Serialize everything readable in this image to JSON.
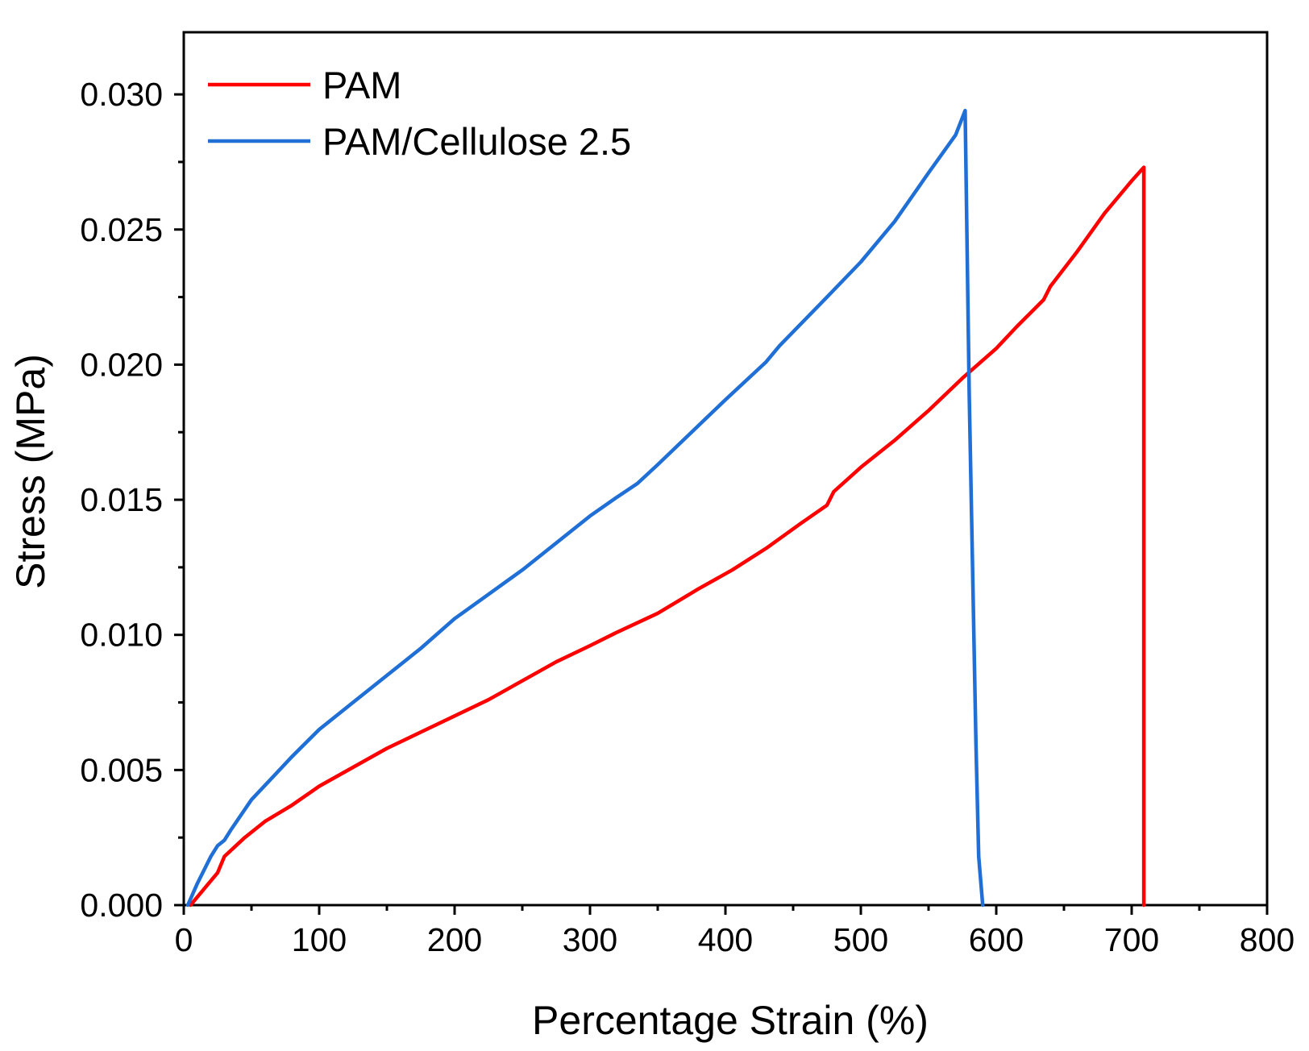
{
  "chart_data": {
    "type": "line",
    "title": "",
    "xlabel": "Percentage Strain (%)",
    "ylabel": "Stress (MPa)",
    "xlim": [
      0,
      800
    ],
    "ylim": [
      0,
      0.0323
    ],
    "x_ticks": [
      0,
      100,
      200,
      300,
      400,
      500,
      600,
      700,
      800
    ],
    "x_tick_labels": [
      "0",
      "100",
      "200",
      "300",
      "400",
      "500",
      "600",
      "700",
      "800"
    ],
    "y_ticks": [
      0,
      0.005,
      0.01,
      0.015,
      0.02,
      0.025,
      0.03
    ],
    "y_tick_labels": [
      "0.000",
      "0.005",
      "0.010",
      "0.015",
      "0.020",
      "0.025",
      "0.030"
    ],
    "grid": false,
    "legend_position": "top-left",
    "series": [
      {
        "name": "PAM",
        "color": "#ff0000",
        "x": [
          5,
          10,
          25,
          30,
          45,
          60,
          80,
          100,
          125,
          150,
          175,
          200,
          225,
          250,
          275,
          300,
          320,
          350,
          370,
          380,
          405,
          430,
          455,
          475,
          480,
          500,
          525,
          550,
          575,
          600,
          615,
          635,
          640,
          660,
          680,
          700,
          709,
          709
        ],
        "y": [
          0,
          0.0003,
          0.0012,
          0.0018,
          0.0025,
          0.0031,
          0.0037,
          0.0044,
          0.0051,
          0.0058,
          0.0064,
          0.007,
          0.0076,
          0.0083,
          0.009,
          0.0096,
          0.0101,
          0.0108,
          0.0114,
          0.0117,
          0.0124,
          0.0132,
          0.0141,
          0.0148,
          0.0153,
          0.0162,
          0.0172,
          0.0183,
          0.0195,
          0.0206,
          0.0214,
          0.0224,
          0.0229,
          0.0242,
          0.0256,
          0.0268,
          0.0273,
          0
        ]
      },
      {
        "name": "PAM/Cellulose 2.5",
        "color": "#1f6fd6",
        "x": [
          3,
          10,
          20,
          25,
          30,
          35,
          50,
          65,
          80,
          100,
          125,
          150,
          175,
          200,
          225,
          250,
          275,
          300,
          320,
          335,
          350,
          375,
          400,
          430,
          440,
          475,
          500,
          525,
          550,
          570,
          577,
          580,
          585,
          587,
          590
        ],
        "y": [
          0,
          0.0008,
          0.0018,
          0.0022,
          0.0024,
          0.0028,
          0.0039,
          0.0047,
          0.0055,
          0.0065,
          0.0075,
          0.0085,
          0.0095,
          0.0106,
          0.0115,
          0.0124,
          0.0134,
          0.0144,
          0.0151,
          0.0156,
          0.0163,
          0.0175,
          0.0187,
          0.0201,
          0.0207,
          0.0225,
          0.0238,
          0.0253,
          0.0271,
          0.0285,
          0.0294,
          0.019,
          0.006,
          0.0018,
          0
        ]
      }
    ]
  }
}
